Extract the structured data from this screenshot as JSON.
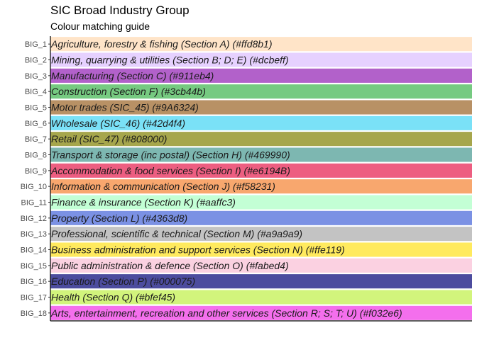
{
  "chart_data": {
    "type": "bar",
    "orientation": "horizontal",
    "title": "SIC Broad Industry Group",
    "subtitle": "Colour matching guide",
    "xlabel": "",
    "ylabel": "",
    "grid": false,
    "legend": "none",
    "bars": [
      {
        "category": "BIG_1",
        "label": "Agriculture, forestry & fishing (Section A)  (#ffd8b1)",
        "color": "#ffd8b1",
        "value": 1
      },
      {
        "category": "BIG_2",
        "label": "Mining, quarrying & utilities (Section B; D; E)  (#dcbeff)",
        "color": "#dcbeff",
        "value": 1
      },
      {
        "category": "BIG_3",
        "label": "Manufacturing (Section C)  (#911eb4)",
        "color": "#911eb4",
        "value": 1
      },
      {
        "category": "BIG_4",
        "label": "Construction (Section F)  (#3cb44b)",
        "color": "#3cb44b",
        "value": 1
      },
      {
        "category": "BIG_5",
        "label": "Motor trades (SIC_45)  (#9A6324)",
        "color": "#9A6324",
        "value": 1
      },
      {
        "category": "BIG_6",
        "label": "Wholesale (SIC_46)  (#42d4f4)",
        "color": "#42d4f4",
        "value": 1
      },
      {
        "category": "BIG_7",
        "label": "Retail (SIC_47)  (#808000)",
        "color": "#808000",
        "value": 1
      },
      {
        "category": "BIG_8",
        "label": "Transport & storage (inc postal) (Section H)  (#469990)",
        "color": "#469990",
        "value": 1
      },
      {
        "category": "BIG_9",
        "label": "Accommodation & food services (Section I)  (#e6194B)",
        "color": "#e6194B",
        "value": 1
      },
      {
        "category": "BIG_10",
        "label": "Information & communication (Section J)  (#f58231)",
        "color": "#f58231",
        "value": 1
      },
      {
        "category": "BIG_11",
        "label": "Finance & insurance (Section K)  (#aaffc3)",
        "color": "#aaffc3",
        "value": 1
      },
      {
        "category": "BIG_12",
        "label": "Property (Section L)  (#4363d8)",
        "color": "#4363d8",
        "value": 1
      },
      {
        "category": "BIG_13",
        "label": "Professional, scientific & technical (Section M)  (#a9a9a9)",
        "color": "#a9a9a9",
        "value": 1
      },
      {
        "category": "BIG_14",
        "label": "Business administration and support services (Section N)  (#ffe119)",
        "color": "#ffe119",
        "value": 1
      },
      {
        "category": "BIG_15",
        "label": "Public administration & defence (Section O)  (#fabed4)",
        "color": "#fabed4",
        "value": 1
      },
      {
        "category": "BIG_16",
        "label": "Education (Section P)  (#000075)",
        "color": "#000075",
        "value": 1
      },
      {
        "category": "BIG_17",
        "label": "Health (Section Q)  (#bfef45)",
        "color": "#bfef45",
        "value": 1
      },
      {
        "category": "BIG_18",
        "label": "Arts, entertainment, recreation and other services (Section R; S; T; U)  (#f032e6)",
        "color": "#f032e6",
        "value": 1
      }
    ]
  }
}
